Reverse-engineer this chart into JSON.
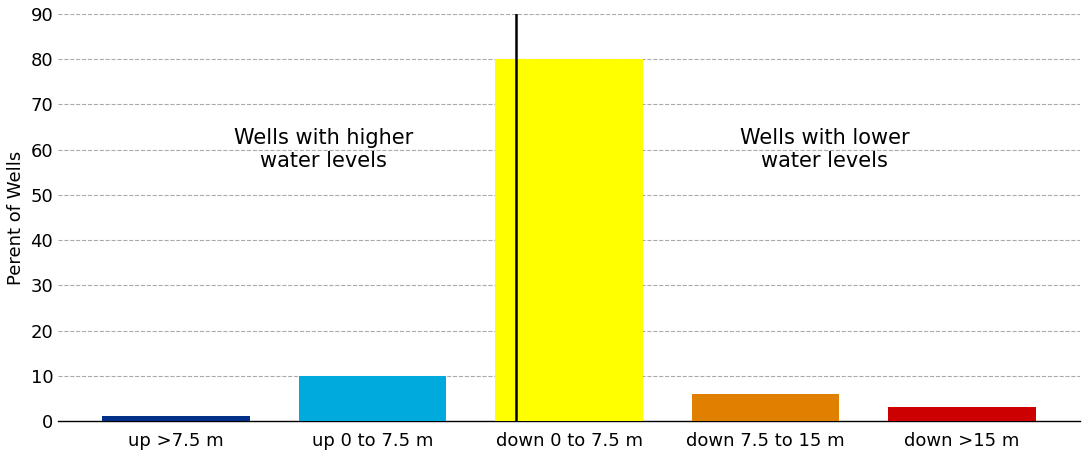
{
  "categories": [
    "up >7.5 m",
    "up 0 to 7.5 m",
    "down 0 to 7.5 m",
    "down 7.5 to 15 m",
    "down >15 m"
  ],
  "values": [
    1,
    10,
    80,
    6,
    3
  ],
  "bar_colors": [
    "#003087",
    "#00AADD",
    "#FFFF00",
    "#E08000",
    "#CC0000"
  ],
  "ylabel": "Perent of Wells",
  "ylim": [
    0,
    90
  ],
  "yticks": [
    0,
    10,
    20,
    30,
    40,
    50,
    60,
    70,
    80,
    90
  ],
  "annotation_left": "Wells with higher\nwater levels",
  "annotation_right": "Wells with lower\nwater levels",
  "background_color": "#ffffff",
  "grid_color": "#aaaaaa",
  "bar_width": 0.75,
  "label_fontsize": 13,
  "tick_fontsize": 13,
  "annotation_fontsize": 15
}
